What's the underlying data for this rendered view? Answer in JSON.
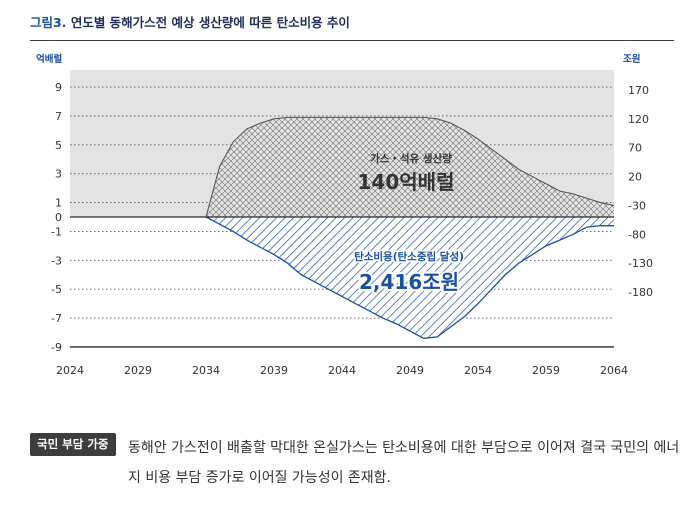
{
  "figure": {
    "number_label": "그림3.",
    "title": "연도별 동해가스전 예상 생산량에 따른 탄소비용 추이"
  },
  "chart_data": {
    "type": "area",
    "left_axis_unit": "억배럴",
    "right_axis_unit": "조원",
    "x_ticks": [
      "2024",
      "2029",
      "2034",
      "2039",
      "2044",
      "2049",
      "2054",
      "2059",
      "2064"
    ],
    "y_left_ticks": [
      "9",
      "7",
      "5",
      "3",
      "1",
      "0",
      "-1",
      "-3",
      "-5",
      "-7",
      "-9"
    ],
    "y_right_ticks": [
      "170",
      "120",
      "70",
      "20",
      "-30",
      "-80",
      "-130",
      "-180"
    ],
    "xlim": [
      2024,
      2064
    ],
    "ylim_left": [
      -9,
      10
    ],
    "grid": true,
    "series": [
      {
        "name": "가스・석유 생산량",
        "annotation": "140억배럴",
        "color": "#888888",
        "x": [
          2034,
          2035,
          2036,
          2037,
          2038,
          2039,
          2040,
          2041,
          2042,
          2043,
          2044,
          2045,
          2046,
          2047,
          2048,
          2049,
          2050,
          2051,
          2052,
          2053,
          2054,
          2055,
          2056,
          2057,
          2058,
          2059,
          2060,
          2061,
          2062,
          2063,
          2064
        ],
        "values": [
          0,
          3.5,
          5.2,
          6.1,
          6.5,
          6.8,
          6.9,
          6.9,
          6.9,
          6.9,
          6.9,
          6.9,
          6.9,
          6.9,
          6.9,
          6.9,
          6.9,
          6.8,
          6.5,
          6.0,
          5.4,
          4.7,
          4.0,
          3.3,
          2.8,
          2.3,
          1.8,
          1.6,
          1.3,
          1.0,
          0.8
        ]
      },
      {
        "name": "탄소비용(탄소중립 달성)",
        "annotation": "2,416조원",
        "color": "#1a4fa3",
        "x": [
          2034,
          2035,
          2036,
          2037,
          2038,
          2039,
          2040,
          2041,
          2042,
          2043,
          2044,
          2045,
          2046,
          2047,
          2048,
          2049,
          2050,
          2051,
          2052,
          2053,
          2054,
          2055,
          2056,
          2057,
          2058,
          2059,
          2060,
          2061,
          2062,
          2063,
          2064
        ],
        "values": [
          0,
          -0.5,
          -1.0,
          -1.6,
          -2.1,
          -2.6,
          -3.2,
          -4.0,
          -4.5,
          -5.0,
          -5.5,
          -6.0,
          -6.5,
          -7.0,
          -7.4,
          -7.9,
          -8.4,
          -8.3,
          -7.6,
          -6.9,
          -6.0,
          -5.0,
          -4.0,
          -3.2,
          -2.6,
          -2.0,
          -1.6,
          -1.2,
          -0.7,
          -0.6,
          -0.6
        ]
      }
    ]
  },
  "note": {
    "badge": "국민 부담 가중",
    "text": "동해안 가스전이 배출할 막대한 온실가스는 탄소비용에 대한 부담으로 이어져 결국 국민의 에너지 비용 부담 증가로 이어질 가능성이 존재함."
  }
}
